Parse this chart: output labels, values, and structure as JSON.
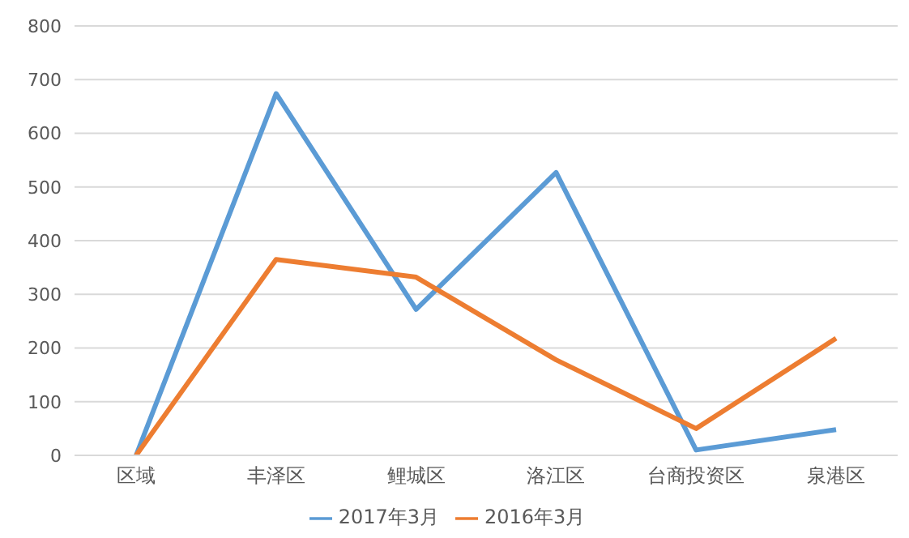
{
  "chart_data": {
    "type": "line",
    "categories": [
      "区域",
      "丰泽区",
      "鲤城区",
      "洛江区",
      "台商投资区",
      "泉港区"
    ],
    "series": [
      {
        "name": "2017年3月",
        "color": "#5b9bd5",
        "values": [
          0,
          674,
          272,
          527,
          10,
          48
        ]
      },
      {
        "name": "2016年3月",
        "color": "#ed7d31",
        "values": [
          0,
          365,
          332,
          178,
          50,
          218
        ]
      }
    ],
    "ylim": [
      0,
      800
    ],
    "yticks": [
      0,
      100,
      200,
      300,
      400,
      500,
      600,
      700,
      800
    ],
    "grid": "y",
    "legend": "bottom",
    "marker": "none",
    "line_style": "solid"
  }
}
